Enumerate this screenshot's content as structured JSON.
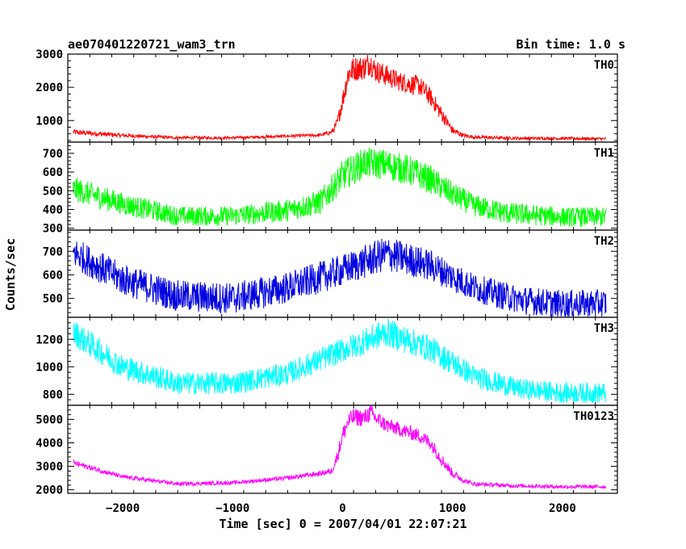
{
  "chart_data": {
    "type": "line",
    "title": "ae070401220721_wam3_trn",
    "subtitle": "Bin time: 1.0 s",
    "xlabel": "Time [sec] 0 = 2007/04/01 22:07:21",
    "ylabel": "Counts/sec",
    "xlim": [
      -2500,
      2500
    ],
    "x_ticks": [
      -2000,
      -1000,
      0,
      1000,
      2000
    ],
    "x_tick_labels": [
      "−2000",
      "−1000",
      "0",
      "1000",
      "2000"
    ],
    "x_range": [
      -2450,
      2400
    ],
    "panels": [
      {
        "name": "TH0",
        "color": "#ff0000",
        "ylim": [
          350,
          3000
        ],
        "y_ticks": [
          1000,
          2000,
          3000
        ],
        "x": [
          -2450,
          -2000,
          -1500,
          -1000,
          -500,
          -200,
          -100,
          -50,
          0,
          50,
          100,
          200,
          250,
          300,
          400,
          500,
          600,
          700,
          800,
          900,
          1000,
          1100,
          1200,
          1500,
          2000,
          2400
        ],
        "values": [
          650,
          550,
          480,
          480,
          530,
          560,
          650,
          900,
          1600,
          2400,
          2550,
          2600,
          2750,
          2500,
          2350,
          2200,
          2100,
          2050,
          1700,
          1200,
          700,
          550,
          500,
          470,
          460,
          450
        ],
        "noise": [
          60,
          40,
          30,
          30,
          30,
          35,
          50,
          120,
          200,
          250,
          250,
          250,
          250,
          230,
          220,
          200,
          200,
          200,
          180,
          150,
          80,
          40,
          35,
          30,
          30,
          30
        ]
      },
      {
        "name": "TH1",
        "color": "#00ff00",
        "ylim": [
          290,
          760
        ],
        "y_ticks": [
          300,
          400,
          500,
          600,
          700
        ],
        "x": [
          -2450,
          -2000,
          -1500,
          -1000,
          -500,
          -200,
          0,
          200,
          400,
          600,
          800,
          1000,
          1200,
          1500,
          2000,
          2400
        ],
        "values": [
          510,
          430,
          365,
          365,
          395,
          440,
          580,
          650,
          640,
          610,
          560,
          480,
          420,
          380,
          360,
          360
        ],
        "noise": [
          45,
          40,
          35,
          35,
          40,
          45,
          55,
          55,
          55,
          55,
          50,
          45,
          40,
          40,
          35,
          35
        ]
      },
      {
        "name": "TH2",
        "color": "#0000e0",
        "ylim": [
          420,
          790
        ],
        "y_ticks": [
          500,
          600,
          700
        ],
        "x": [
          -2450,
          -2000,
          -1500,
          -1000,
          -500,
          0,
          400,
          800,
          1200,
          1600,
          2000,
          2400
        ],
        "values": [
          695,
          580,
          510,
          500,
          545,
          620,
          690,
          640,
          545,
          495,
          475,
          480
        ],
        "noise": [
          45,
          45,
          45,
          45,
          45,
          45,
          50,
          45,
          40,
          40,
          40,
          40
        ]
      },
      {
        "name": "TH3",
        "color": "#00ffff",
        "ylim": [
          720,
          1360
        ],
        "y_ticks": [
          800,
          1000,
          1200
        ],
        "x": [
          -2450,
          -2000,
          -1500,
          -1000,
          -500,
          0,
          400,
          800,
          1200,
          1600,
          2000,
          2400
        ],
        "values": [
          1250,
          1000,
          880,
          880,
          950,
          1120,
          1250,
          1130,
          930,
          840,
          810,
          810
        ],
        "noise": [
          65,
          60,
          55,
          55,
          55,
          60,
          70,
          65,
          55,
          50,
          50,
          50
        ]
      },
      {
        "name": "TH0123",
        "color": "#ff00ff",
        "ylim": [
          1850,
          5600
        ],
        "y_ticks": [
          2000,
          3000,
          4000,
          5000
        ],
        "x": [
          -2450,
          -2000,
          -1500,
          -1000,
          -500,
          -200,
          -100,
          -50,
          0,
          50,
          100,
          200,
          250,
          300,
          400,
          500,
          600,
          700,
          800,
          900,
          1000,
          1100,
          1200,
          1500,
          2000,
          2400
        ],
        "values": [
          3150,
          2550,
          2250,
          2300,
          2500,
          2700,
          2800,
          3400,
          4300,
          4900,
          5100,
          5050,
          5300,
          5050,
          4750,
          4600,
          4450,
          4300,
          4000,
          3300,
          2700,
          2400,
          2250,
          2180,
          2130,
          2130
        ],
        "noise": [
          80,
          60,
          55,
          55,
          60,
          70,
          90,
          180,
          250,
          250,
          250,
          250,
          250,
          230,
          220,
          200,
          200,
          200,
          200,
          180,
          120,
          70,
          60,
          55,
          55,
          55
        ]
      }
    ]
  }
}
